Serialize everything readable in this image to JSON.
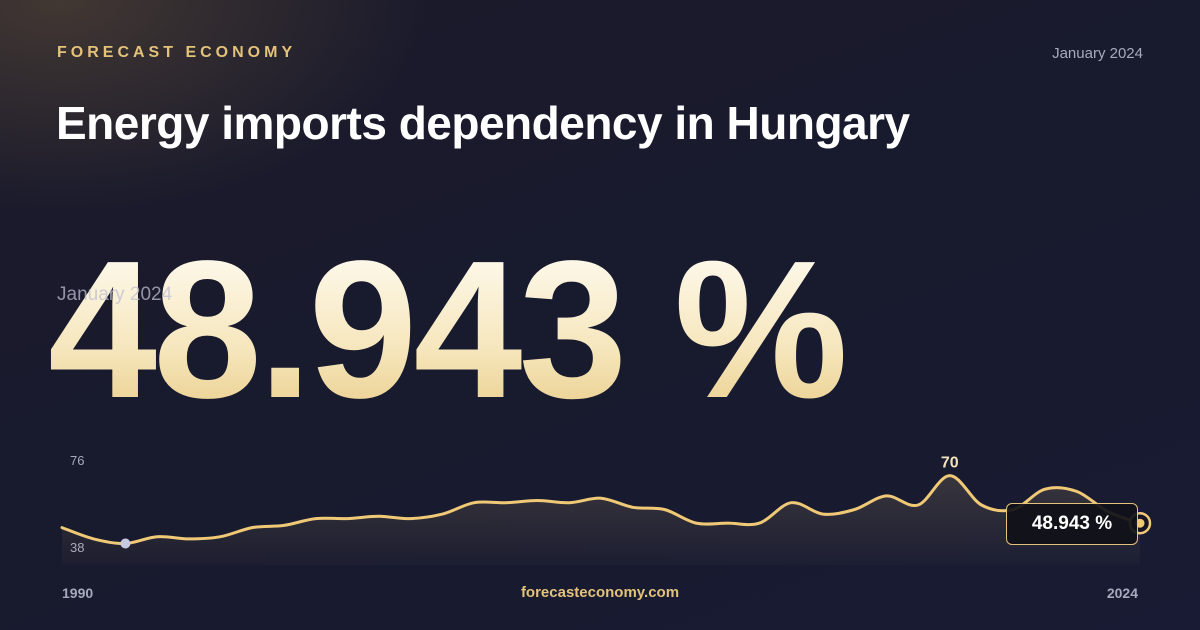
{
  "header": {
    "brand": "FORECAST ECONOMY",
    "date": "January 2024",
    "title": "Energy imports dependency in Hungary"
  },
  "headline": {
    "value": "48.943 %",
    "date": "January 2024"
  },
  "footer": {
    "url": "forecasteconomy.com"
  },
  "colors": {
    "accent": "#e3c27a",
    "line": "#f0c977",
    "marker_start": "#c7c9e0"
  },
  "chart_data": {
    "type": "area",
    "title": "",
    "xlabel": "",
    "ylabel": "",
    "x_start_label": "1990",
    "x_end_label": "2024",
    "y_tick_labels": [
      "76",
      "38"
    ],
    "ylim": [
      38,
      76
    ],
    "grid": false,
    "legend": "none",
    "peak_label": "70",
    "last_value_label": "48.943 %",
    "series": [
      {
        "x": [
          1990,
          1991,
          1992,
          1993,
          1994,
          1995,
          1996,
          1997,
          1998,
          1999,
          2000,
          2001,
          2002,
          2003,
          2004,
          2005,
          2006,
          2007,
          2008,
          2009,
          2010,
          2011,
          2012,
          2013,
          2014,
          2015,
          2016,
          2017,
          2018,
          2019,
          2020,
          2021,
          2022,
          2023,
          2024
        ],
        "values": [
          47,
          42,
          40,
          43,
          42,
          43,
          47,
          48,
          51,
          51,
          52,
          51,
          53,
          58,
          58,
          59,
          58,
          60,
          56,
          55,
          49,
          49,
          49,
          58,
          53,
          55,
          61,
          57,
          70,
          57,
          55,
          64,
          63,
          54,
          48.943
        ]
      }
    ]
  }
}
